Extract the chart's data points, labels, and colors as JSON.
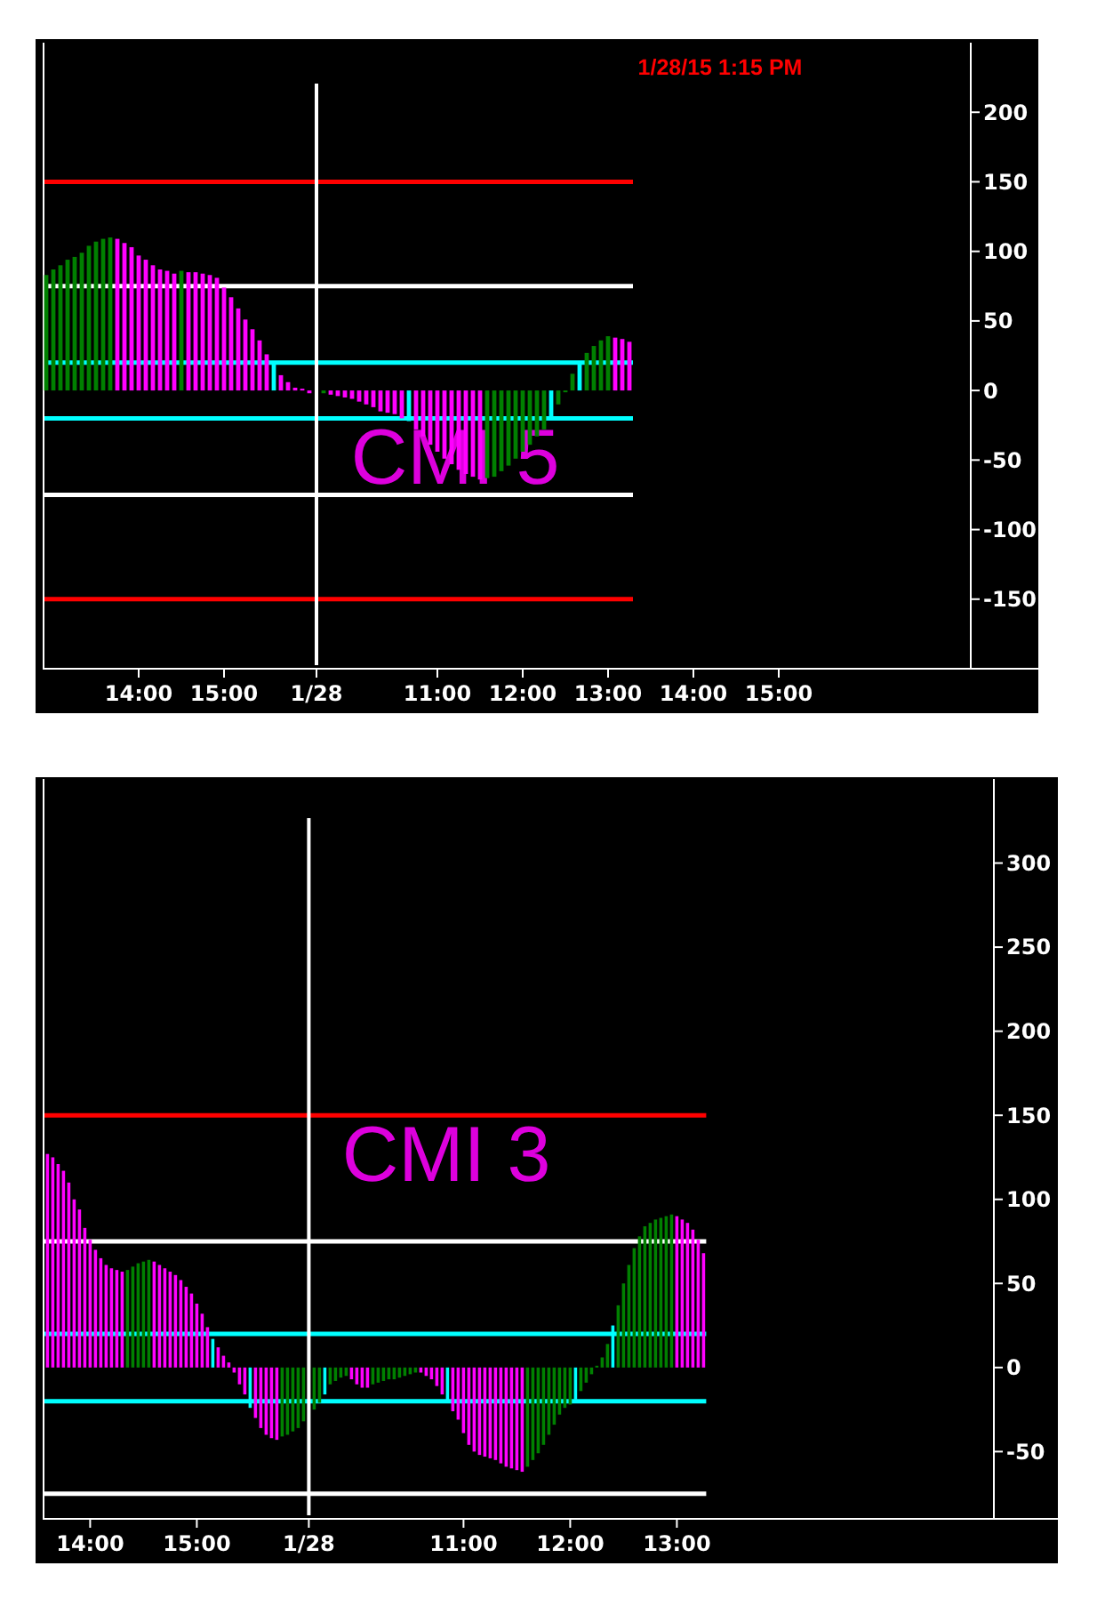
{
  "chart_data": [
    {
      "type": "bar",
      "title": "CMI 5",
      "annotations": [
        "1/28/15 1:15 PM"
      ],
      "categories": [
        null,
        null,
        null,
        null,
        null,
        null,
        null,
        null,
        null,
        null,
        null,
        null,
        null,
        "14:00",
        null,
        null,
        null,
        null,
        null,
        null,
        null,
        null,
        null,
        null,
        null,
        "15:00",
        null,
        null,
        null,
        null,
        null,
        null,
        null,
        null,
        null,
        null,
        null,
        null,
        "1/28",
        null,
        null,
        null,
        null,
        null,
        null,
        null,
        null,
        null,
        null,
        null,
        null,
        null,
        null,
        null,
        null,
        "11:00",
        null,
        null,
        null,
        null,
        null,
        null,
        null,
        null,
        null,
        null,
        null,
        "12:00",
        null,
        null,
        null,
        null,
        null,
        null,
        null,
        null,
        null,
        null,
        null,
        "13:00",
        null,
        null,
        null,
        null,
        null,
        null,
        null,
        null,
        null,
        null,
        null,
        "14:00",
        null,
        null,
        null,
        null,
        null,
        null,
        null,
        null,
        null,
        null,
        null,
        "15:00",
        null,
        null,
        null,
        null,
        null,
        null,
        null,
        null,
        null,
        null,
        null,
        null,
        null,
        null,
        null,
        null,
        null,
        null,
        null,
        null,
        null,
        null,
        null,
        null,
        null,
        null
      ],
      "values": [
        83,
        87,
        90,
        94,
        96,
        99,
        104,
        107,
        109,
        110,
        109,
        106,
        103,
        97,
        94,
        90,
        87,
        86,
        84,
        86,
        85,
        85,
        84,
        83,
        81,
        74,
        67,
        59,
        51,
        44,
        36,
        26,
        19,
        11,
        6,
        2,
        1,
        -2,
        null,
        -2,
        -3,
        -4,
        -5,
        -6,
        -8,
        -10,
        -12,
        -15,
        -16,
        -17,
        -20,
        -22,
        -28,
        -33,
        -39,
        -44,
        -49,
        -53,
        -57,
        -60,
        -62,
        -64,
        -63,
        -62,
        -58,
        -54,
        -49,
        -44,
        -39,
        -33,
        -28,
        -19,
        -10,
        -1,
        12,
        21,
        27,
        32,
        36,
        39,
        38,
        37,
        35,
        null,
        null,
        null,
        null,
        null,
        null,
        null,
        null,
        null,
        null,
        null,
        null,
        null,
        null,
        null,
        null,
        null,
        null,
        null,
        null,
        null,
        null,
        null,
        null,
        null,
        null,
        null,
        null,
        null,
        null,
        null,
        null,
        null,
        null,
        null,
        null,
        null,
        null,
        null,
        null,
        null,
        null,
        null,
        null,
        null,
        null,
        null
      ],
      "colors": [
        "#008000",
        "#008000",
        "#008000",
        "#008000",
        "#008000",
        "#008000",
        "#008000",
        "#008000",
        "#008000",
        "#008000",
        "#ff00ff",
        "#ff00ff",
        "#ff00ff",
        "#ff00ff",
        "#ff00ff",
        "#ff00ff",
        "#ff00ff",
        "#ff00ff",
        "#ff00ff",
        "#008000",
        "#ff00ff",
        "#ff00ff",
        "#ff00ff",
        "#ff00ff",
        "#ff00ff",
        "#ff00ff",
        "#ff00ff",
        "#ff00ff",
        "#ff00ff",
        "#ff00ff",
        "#ff00ff",
        "#ff00ff",
        "#00ffff",
        "#ff00ff",
        "#ff00ff",
        "#ff00ff",
        "#ff00ff",
        "#ff00ff",
        null,
        "#008000",
        "#ff00ff",
        "#ff00ff",
        "#ff00ff",
        "#ff00ff",
        "#ff00ff",
        "#ff00ff",
        "#ff00ff",
        "#ff00ff",
        "#ff00ff",
        "#ff00ff",
        "#ff00ff",
        "#00ffff",
        "#ff00ff",
        "#ff00ff",
        "#ff00ff",
        "#ff00ff",
        "#ff00ff",
        "#ff00ff",
        "#ff00ff",
        "#ff00ff",
        "#ff00ff",
        "#ff00ff",
        "#008000",
        "#008000",
        "#008000",
        "#008000",
        "#008000",
        "#008000",
        "#008000",
        "#008000",
        "#008000",
        "#00ffff",
        "#008000",
        "#008000",
        "#008000",
        "#00ffff",
        "#008000",
        "#008000",
        "#008000",
        "#008000",
        "#ff00ff",
        "#ff00ff",
        "#ff00ff",
        null,
        null,
        null,
        null,
        null,
        null,
        null,
        null,
        null,
        null,
        null,
        null,
        null,
        null,
        null,
        null,
        null,
        null,
        null,
        null,
        null,
        null,
        null,
        null,
        null,
        null,
        null,
        null,
        null,
        null,
        null,
        null,
        null,
        null,
        null,
        null,
        null,
        null,
        null,
        null,
        null,
        null,
        null,
        null,
        null,
        null,
        null
      ],
      "ylim": [
        -200,
        250
      ],
      "yticks": [
        -150,
        -100,
        -50,
        0,
        50,
        100,
        150,
        200
      ],
      "ref_lines": [
        {
          "axis": "y",
          "value": 150,
          "color": "#ff0000"
        },
        {
          "axis": "y",
          "value": -150,
          "color": "#ff0000"
        },
        {
          "axis": "y",
          "value": 75,
          "color": "#ffffff"
        },
        {
          "axis": "y",
          "value": -75,
          "color": "#ffffff"
        },
        {
          "axis": "y",
          "value": 20,
          "color": "#00ffff"
        },
        {
          "axis": "y",
          "value": -20,
          "color": "#00ffff"
        },
        {
          "axis": "x",
          "value": "1/28",
          "color": "#ffffff"
        }
      ]
    },
    {
      "type": "bar",
      "title": "CMI 3",
      "categories": [
        null,
        null,
        null,
        null,
        null,
        null,
        null,
        null,
        "14:00",
        null,
        null,
        null,
        null,
        null,
        null,
        null,
        null,
        null,
        null,
        null,
        null,
        null,
        null,
        null,
        null,
        null,
        null,
        null,
        "15:00",
        null,
        null,
        null,
        null,
        null,
        null,
        null,
        null,
        null,
        null,
        null,
        null,
        null,
        null,
        null,
        null,
        null,
        null,
        null,
        null,
        "1/28",
        null,
        null,
        null,
        null,
        null,
        null,
        null,
        null,
        null,
        null,
        null,
        null,
        null,
        null,
        null,
        null,
        null,
        null,
        null,
        null,
        null,
        null,
        null,
        null,
        null,
        null,
        null,
        null,
        "11:00",
        null,
        null,
        null,
        null,
        null,
        null,
        null,
        null,
        null,
        null,
        null,
        null,
        null,
        null,
        null,
        null,
        null,
        null,
        null,
        "12:00",
        null,
        null,
        null,
        null,
        null,
        null,
        null,
        null,
        null,
        null,
        null,
        null,
        null,
        null,
        null,
        null,
        null,
        null,
        null,
        "13:00",
        null,
        null,
        null,
        null,
        null,
        null,
        null,
        null,
        null,
        null,
        null,
        null,
        null,
        null,
        null,
        null,
        null,
        null,
        null,
        null,
        null,
        null,
        null,
        null,
        null,
        null,
        null,
        null,
        null,
        null,
        null,
        null,
        null,
        null,
        null,
        null,
        null,
        null,
        null,
        null,
        null,
        null,
        null,
        null,
        null,
        null,
        null,
        null,
        null,
        null,
        null,
        null,
        null,
        null,
        null,
        null,
        null,
        null,
        null
      ],
      "values": [
        127,
        125,
        121,
        117,
        110,
        100,
        94,
        83,
        76,
        70,
        65,
        61,
        59,
        58,
        57,
        58,
        60,
        62,
        63,
        64,
        63,
        61,
        59,
        57,
        55,
        52,
        48,
        44,
        38,
        32,
        24,
        17,
        12,
        7,
        3,
        -3,
        -10,
        -16,
        -24,
        -30,
        -36,
        -40,
        -42,
        -43,
        -41,
        -40,
        -38,
        -36,
        -32,
        null,
        -25,
        -21,
        -16,
        -10,
        -8,
        -6,
        -5,
        -7,
        -10,
        -12,
        -12,
        -10,
        -9,
        -8,
        -7,
        -7,
        -6,
        -5,
        -4,
        -3,
        -3,
        -5,
        -7,
        -11,
        -16,
        -21,
        -26,
        -31,
        -39,
        -46,
        -50,
        -52,
        -53,
        -54,
        -55,
        -57,
        -59,
        -60,
        -61,
        -62,
        -59,
        -55,
        -51,
        -46,
        -40,
        -34,
        -28,
        -24,
        -22,
        -19,
        -14,
        -9,
        -4,
        1,
        6,
        14,
        25,
        37,
        50,
        61,
        71,
        78,
        84,
        86,
        88,
        89,
        90,
        91,
        90,
        88,
        86,
        82,
        76,
        68,
        null,
        null,
        null,
        null,
        null,
        null,
        null,
        null,
        null,
        null,
        null,
        null,
        null,
        null,
        null,
        null,
        null,
        null,
        null,
        null,
        null,
        null,
        null,
        null,
        null,
        null,
        null,
        null,
        null,
        null,
        null,
        null,
        null,
        null,
        null,
        null,
        null,
        null,
        null,
        null,
        null,
        null,
        null,
        null,
        null,
        null,
        null,
        null,
        null,
        null,
        null,
        null,
        null,
        null
      ],
      "colors": [
        "#ff00ff",
        "#ff00ff",
        "#ff00ff",
        "#ff00ff",
        "#ff00ff",
        "#ff00ff",
        "#ff00ff",
        "#ff00ff",
        "#ff00ff",
        "#ff00ff",
        "#ff00ff",
        "#ff00ff",
        "#ff00ff",
        "#ff00ff",
        "#ff00ff",
        "#008000",
        "#008000",
        "#008000",
        "#008000",
        "#008000",
        "#ff00ff",
        "#ff00ff",
        "#ff00ff",
        "#ff00ff",
        "#ff00ff",
        "#ff00ff",
        "#ff00ff",
        "#ff00ff",
        "#ff00ff",
        "#ff00ff",
        "#ff00ff",
        "#00ffff",
        "#ff00ff",
        "#ff00ff",
        "#ff00ff",
        "#ff00ff",
        "#ff00ff",
        "#ff00ff",
        "#00ffff",
        "#ff00ff",
        "#ff00ff",
        "#ff00ff",
        "#ff00ff",
        "#ff00ff",
        "#008000",
        "#008000",
        "#008000",
        "#008000",
        "#008000",
        null,
        "#008000",
        "#008000",
        "#00ffff",
        "#008000",
        "#008000",
        "#008000",
        "#008000",
        "#ff00ff",
        "#ff00ff",
        "#ff00ff",
        "#ff00ff",
        "#008000",
        "#008000",
        "#008000",
        "#008000",
        "#008000",
        "#008000",
        "#008000",
        "#008000",
        "#008000",
        "#ff00ff",
        "#ff00ff",
        "#ff00ff",
        "#ff00ff",
        "#ff00ff",
        "#00ffff",
        "#ff00ff",
        "#ff00ff",
        "#ff00ff",
        "#ff00ff",
        "#ff00ff",
        "#ff00ff",
        "#ff00ff",
        "#ff00ff",
        "#ff00ff",
        "#ff00ff",
        "#ff00ff",
        "#ff00ff",
        "#ff00ff",
        "#ff00ff",
        "#008000",
        "#008000",
        "#008000",
        "#008000",
        "#008000",
        "#008000",
        "#008000",
        "#008000",
        "#008000",
        "#00ffff",
        "#008000",
        "#008000",
        "#008000",
        "#008000",
        "#008000",
        "#008000",
        "#00ffff",
        "#008000",
        "#008000",
        "#008000",
        "#008000",
        "#008000",
        "#008000",
        "#008000",
        "#008000",
        "#008000",
        "#008000",
        "#008000",
        "#ff00ff",
        "#ff00ff",
        "#ff00ff",
        "#ff00ff",
        "#ff00ff",
        "#ff00ff",
        null,
        null,
        null,
        null,
        null,
        null,
        null,
        null,
        null,
        null,
        null,
        null,
        null,
        null,
        null,
        null,
        null,
        null,
        null,
        null,
        null,
        null,
        null,
        null,
        null,
        null,
        null,
        null,
        null,
        null,
        null,
        null,
        null,
        null,
        null,
        null,
        null,
        null,
        null,
        null,
        null,
        null,
        null,
        null,
        null,
        null,
        null,
        null,
        null,
        null,
        null,
        null,
        null,
        null
      ],
      "ylim": [
        -90,
        350
      ],
      "yticks": [
        -50,
        0,
        50,
        100,
        150,
        200,
        250,
        300
      ],
      "ref_lines": [
        {
          "axis": "y",
          "value": 150,
          "color": "#ff0000"
        },
        {
          "axis": "y",
          "value": 75,
          "color": "#ffffff"
        },
        {
          "axis": "y",
          "value": -75,
          "color": "#ffffff"
        },
        {
          "axis": "y",
          "value": 20,
          "color": "#00ffff"
        },
        {
          "axis": "y",
          "value": -20,
          "color": "#00ffff"
        },
        {
          "axis": "x",
          "value": "1/28",
          "color": "#ffffff"
        }
      ]
    }
  ]
}
